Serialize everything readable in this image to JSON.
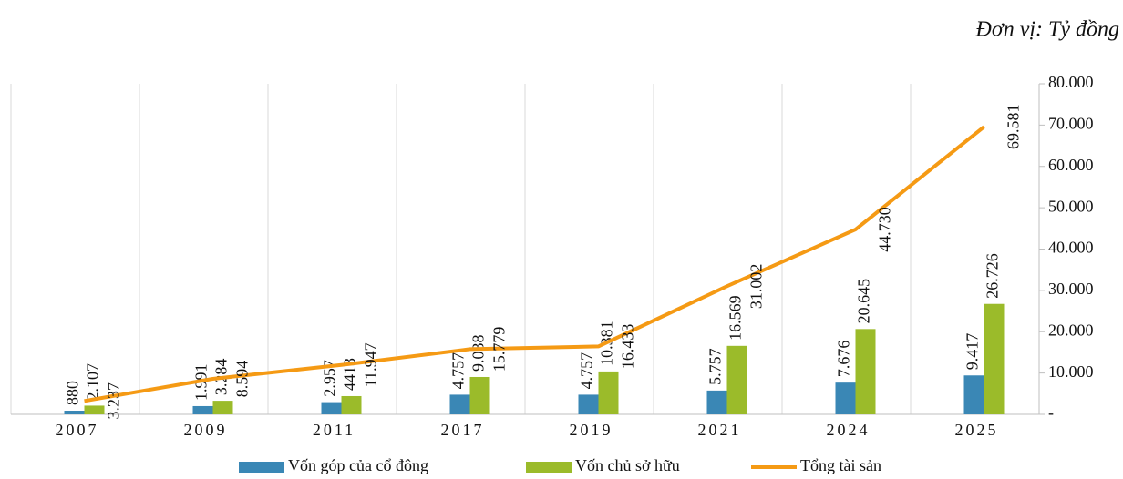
{
  "chart_data": {
    "type": "bar_line",
    "unit_note": "Đơn vị: Tỷ đồng",
    "categories": [
      "2007",
      "2009",
      "2011",
      "2017",
      "2019",
      "2021",
      "2024",
      "2025"
    ],
    "series": [
      {
        "name": "Vốn góp của cổ đông",
        "color": "#3a87b5",
        "kind": "bar",
        "values": [
          880,
          1991,
          2957,
          4757,
          4757,
          5757,
          7676,
          9417
        ],
        "value_labels": [
          "880",
          "1.991",
          "2.957",
          "4.757",
          "4.757",
          "5.757",
          "7.676",
          "9.417"
        ]
      },
      {
        "name": "Vốn chủ sở hữu",
        "color": "#9bbb2a",
        "kind": "bar",
        "values": [
          2107,
          3284,
          4413,
          9038,
          10381,
          16569,
          20645,
          26726
        ],
        "value_labels": [
          "2.107",
          "3.284",
          "4413",
          "9.038",
          "10.381",
          "16.569",
          "20.645",
          "26.726"
        ]
      },
      {
        "name": "Tổng tài sản",
        "color": "#f59a14",
        "kind": "line",
        "values": [
          3237,
          8594,
          11947,
          15779,
          16433,
          31002,
          44730,
          69581
        ],
        "value_labels": [
          "3.237",
          "8.594",
          "11.947",
          "15.779",
          "16.433",
          "31.002",
          "44.730",
          "69.581"
        ]
      }
    ],
    "ylim": [
      0,
      80000
    ],
    "yticks": [
      {
        "value": 0,
        "label": "-"
      },
      {
        "value": 10000,
        "label": "10.000"
      },
      {
        "value": 20000,
        "label": "20.000"
      },
      {
        "value": 30000,
        "label": "30.000"
      },
      {
        "value": 40000,
        "label": "40.000"
      },
      {
        "value": 50000,
        "label": "50.000"
      },
      {
        "value": 60000,
        "label": "60.000"
      },
      {
        "value": 70000,
        "label": "70.000"
      },
      {
        "value": 80000,
        "label": "80.000"
      }
    ],
    "legend": "bottom"
  }
}
